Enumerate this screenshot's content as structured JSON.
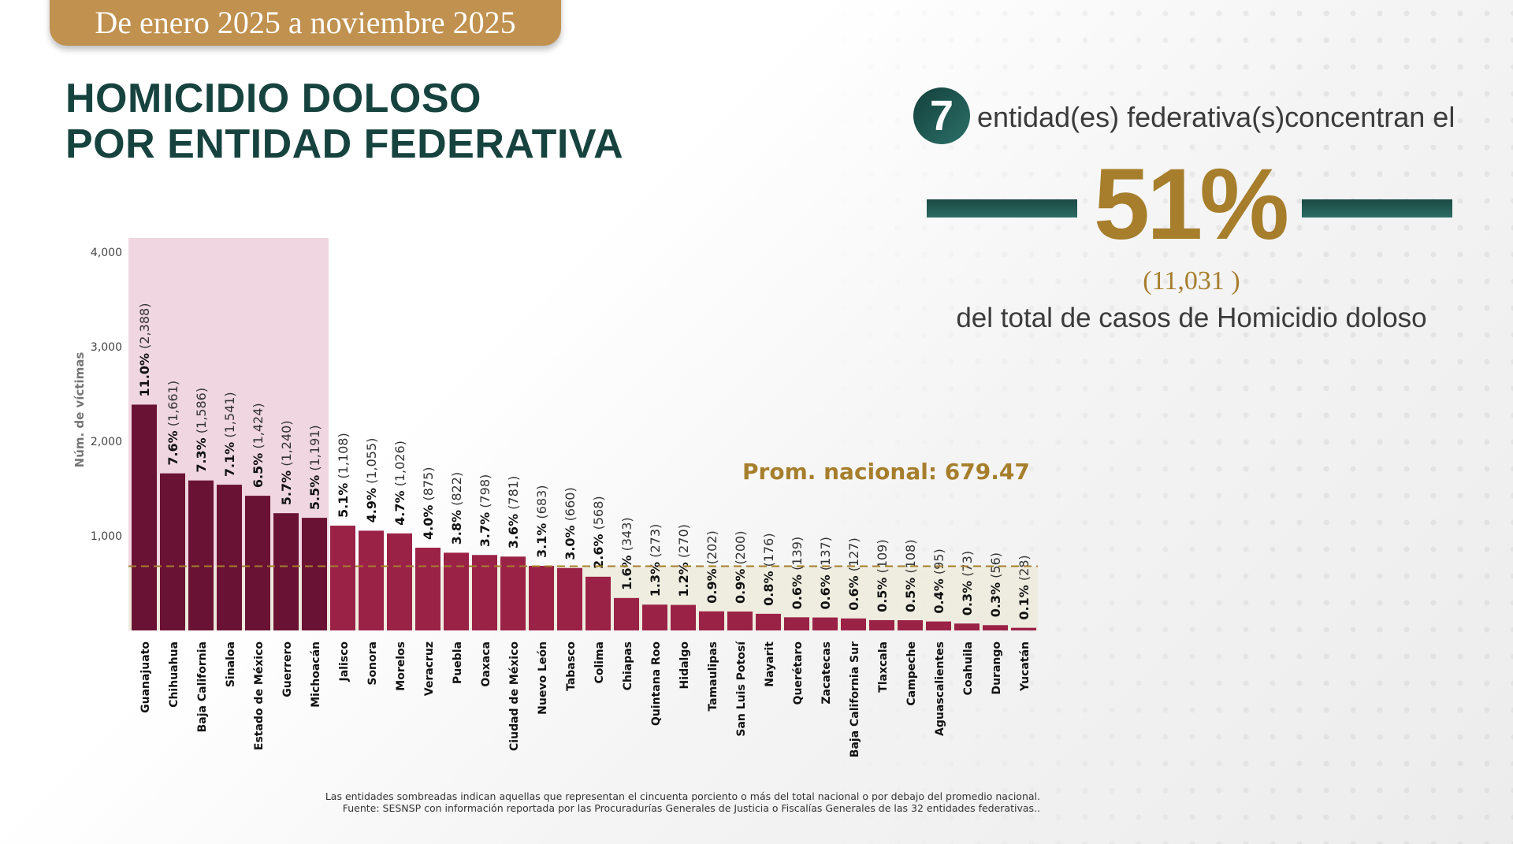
{
  "header": {
    "period": "De enero 2025 a noviembre 2025",
    "title_line1": "HOMICIDIO DOLOSO",
    "title_line2": "POR ENTIDAD FEDERATIVA"
  },
  "summary": {
    "count_entities": "7",
    "concentrate_text": "entidad(es) federativa(s)concentran el",
    "percent": "51%",
    "cases": "(11,031 )",
    "total_text": "del total de casos de Homicidio doloso"
  },
  "colors": {
    "top_bars": "#6a1233",
    "other_bars": "#9b2247",
    "highlight_shade": "#efd6e0",
    "below_avg_shade": "#ecebdc",
    "avg_line": "#a67e2c",
    "accent_teal": "#1c4944",
    "gold": "#a67e2c"
  },
  "chart_data": {
    "type": "bar",
    "ylabel": "Núm. de víctimas",
    "ylim": [
      0,
      4000
    ],
    "yticks": [
      "1,000",
      "2,000",
      "3,000",
      "4,000"
    ],
    "ytick_values": [
      1000,
      2000,
      3000,
      4000
    ],
    "grid": false,
    "highlighted_count": 7,
    "average": 679.47,
    "average_label": "Prom. nacional: 679.47",
    "categories": [
      "Guanajuato",
      "Chihuahua",
      "Baja California",
      "Sinaloa",
      "Estado de México",
      "Guerrero",
      "Michoacán",
      "Jalisco",
      "Sonora",
      "Morelos",
      "Veracruz",
      "Puebla",
      "Oaxaca",
      "Ciudad de México",
      "Nuevo León",
      "Tabasco",
      "Colima",
      "Chiapas",
      "Quintana Roo",
      "Hidalgo",
      "Tamaulipas",
      "San Luis Potosí",
      "Nayarit",
      "Querétaro",
      "Zacatecas",
      "Baja California Sur",
      "Tlaxcala",
      "Campeche",
      "Aguascalientes",
      "Coahuila",
      "Durango",
      "Yucatán"
    ],
    "values": [
      2388,
      1661,
      1586,
      1541,
      1424,
      1240,
      1191,
      1108,
      1055,
      1026,
      875,
      822,
      798,
      781,
      683,
      660,
      568,
      343,
      273,
      270,
      202,
      200,
      176,
      139,
      137,
      127,
      109,
      108,
      95,
      73,
      56,
      28
    ],
    "value_labels": [
      "(2,388)",
      "(1,661)",
      "(1,586)",
      "(1,541)",
      "(1,424)",
      "(1,240)",
      "(1,191)",
      "(1,108)",
      "(1,055)",
      "(1,026)",
      "(875)",
      "(822)",
      "(798)",
      "(781)",
      "(683)",
      "(660)",
      "(568)",
      "(343)",
      "(273)",
      "(270)",
      "(202)",
      "(200)",
      "(176)",
      "(139)",
      "(137)",
      "(127)",
      "(109)",
      "(108)",
      "(95)",
      "(73)",
      "(56)",
      "(28)"
    ],
    "percents": [
      "11.0%",
      "7.6%",
      "7.3%",
      "7.1%",
      "6.5%",
      "5.7%",
      "5.5%",
      "5.1%",
      "4.9%",
      "4.7%",
      "4.0%",
      "3.8%",
      "3.7%",
      "3.6%",
      "3.1%",
      "3.0%",
      "2.6%",
      "1.6%",
      "1.3%",
      "1.2%",
      "0.9%",
      "0.9%",
      "0.8%",
      "0.6%",
      "0.6%",
      "0.6%",
      "0.5%",
      "0.5%",
      "0.4%",
      "0.3%",
      "0.3%",
      "0.1%"
    ]
  },
  "footnote": {
    "line1": "Las entidades sombreadas indican aquellas que representan el cincuenta porciento o más del total nacional o por debajo del promedio nacional.",
    "line2": "Fuente: SESNSP con información reportada por las Procuradurías Generales de Justicia o Fiscalías Generales de las 32 entidades federativas.."
  }
}
